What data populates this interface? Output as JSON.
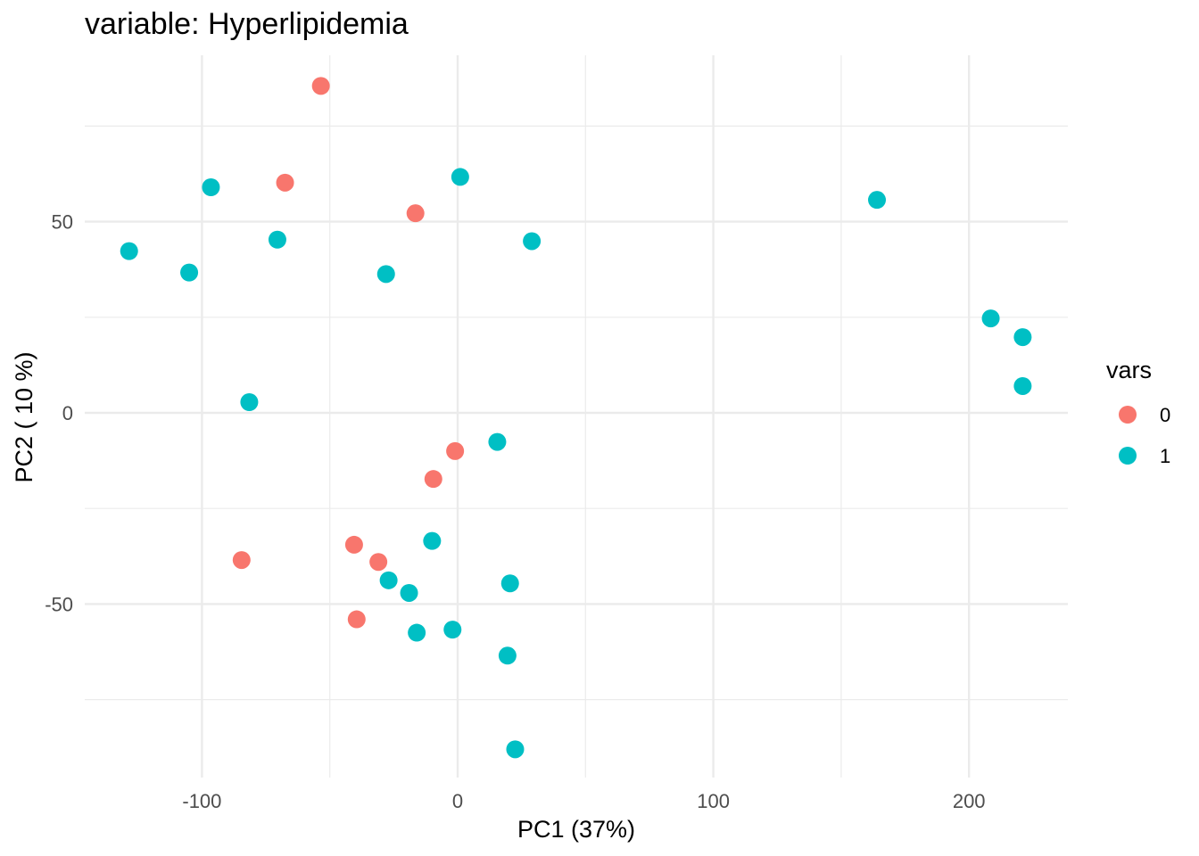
{
  "chart_data": {
    "type": "scatter",
    "title": "variable: Hyperlipidemia",
    "xlabel": "PC1 (37%)",
    "ylabel": "PC2 ( 10 %)",
    "xlim": [
      -146,
      239
    ],
    "ylim": [
      -96,
      96
    ],
    "x_ticks": [
      -100,
      0,
      100,
      200
    ],
    "x_tick_labels": [
      "-100",
      "0",
      "100",
      "200"
    ],
    "x_minor_ticks": [
      -50,
      50,
      150
    ],
    "y_ticks": [
      -50,
      0,
      50
    ],
    "y_tick_labels": [
      "-50",
      "0",
      "50"
    ],
    "y_minor_ticks": [
      -75,
      -25,
      25,
      75
    ],
    "grid": true,
    "legend": {
      "title": "vars",
      "position": "right",
      "entries": [
        {
          "label": "0",
          "color": "#F8766D"
        },
        {
          "label": "1",
          "color": "#00BFC4"
        }
      ]
    },
    "series": [
      {
        "name": "0",
        "color": "#F8766D",
        "points": [
          {
            "x": -53.5,
            "y": 85.5
          },
          {
            "x": -67.5,
            "y": 60.2
          },
          {
            "x": -16.5,
            "y": 52.2
          },
          {
            "x": -1.0,
            "y": -10.0
          },
          {
            "x": -9.5,
            "y": -17.3
          },
          {
            "x": -40.5,
            "y": -34.5
          },
          {
            "x": -31.0,
            "y": -39.0
          },
          {
            "x": -84.5,
            "y": -38.5
          },
          {
            "x": -39.5,
            "y": -54.0
          }
        ]
      },
      {
        "name": "1",
        "color": "#00BFC4",
        "points": [
          {
            "x": -96.5,
            "y": 59.0
          },
          {
            "x": -128.5,
            "y": 42.3
          },
          {
            "x": -105.0,
            "y": 36.7
          },
          {
            "x": -70.5,
            "y": 45.3
          },
          {
            "x": 1.0,
            "y": 61.7
          },
          {
            "x": 29.0,
            "y": 44.9
          },
          {
            "x": -28.0,
            "y": 36.3
          },
          {
            "x": -81.5,
            "y": 2.8
          },
          {
            "x": 164.0,
            "y": 55.7
          },
          {
            "x": 208.5,
            "y": 24.7
          },
          {
            "x": 221.0,
            "y": 19.8
          },
          {
            "x": 221.0,
            "y": 7.0
          },
          {
            "x": 15.5,
            "y": -7.6
          },
          {
            "x": -10.0,
            "y": -33.5
          },
          {
            "x": -27.0,
            "y": -43.8
          },
          {
            "x": -19.0,
            "y": -47.1
          },
          {
            "x": 20.5,
            "y": -44.6
          },
          {
            "x": -16.0,
            "y": -57.5
          },
          {
            "x": -2.0,
            "y": -56.7
          },
          {
            "x": 19.5,
            "y": -63.5
          },
          {
            "x": 22.5,
            "y": -88.0
          }
        ]
      }
    ]
  }
}
